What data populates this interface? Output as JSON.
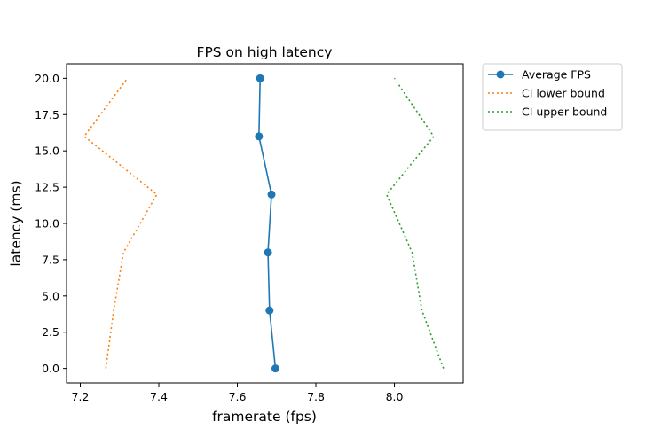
{
  "chart_data": {
    "type": "line",
    "title": "FPS on high latency",
    "xlabel": "framerate (fps)",
    "ylabel": "latency (ms)",
    "xlim": [
      7.165,
      8.175
    ],
    "ylim": [
      -1.0,
      21.0
    ],
    "xticks": [
      7.2,
      7.4,
      7.6,
      7.8,
      8.0
    ],
    "xtick_labels": [
      "7.2",
      "7.4",
      "7.6",
      "7.8",
      "8.0"
    ],
    "yticks": [
      0.0,
      2.5,
      5.0,
      7.5,
      10.0,
      12.5,
      15.0,
      17.5,
      20.0
    ],
    "ytick_labels": [
      "0.0",
      "2.5",
      "5.0",
      "7.5",
      "10.0",
      "12.5",
      "15.0",
      "17.5",
      "20.0"
    ],
    "grid": false,
    "legend_placement": "outside-upper-right",
    "series": [
      {
        "name": "Average FPS",
        "style": "solid",
        "marker": "circle",
        "color": "#1f77b4",
        "points": [
          {
            "x": 7.697,
            "y": 0
          },
          {
            "x": 7.682,
            "y": 4
          },
          {
            "x": 7.678,
            "y": 8
          },
          {
            "x": 7.687,
            "y": 12
          },
          {
            "x": 7.655,
            "y": 16
          },
          {
            "x": 7.658,
            "y": 20
          }
        ]
      },
      {
        "name": "CI lower bound",
        "style": "dotted",
        "marker": "none",
        "color": "#ff7f0e",
        "points": [
          {
            "x": 7.265,
            "y": 0
          },
          {
            "x": 7.285,
            "y": 4
          },
          {
            "x": 7.31,
            "y": 8
          },
          {
            "x": 7.395,
            "y": 12
          },
          {
            "x": 7.21,
            "y": 16
          },
          {
            "x": 7.32,
            "y": 20
          }
        ]
      },
      {
        "name": "CI upper bound",
        "style": "dotted",
        "marker": "none",
        "color": "#2ca02c",
        "points": [
          {
            "x": 8.125,
            "y": 0
          },
          {
            "x": 8.07,
            "y": 4
          },
          {
            "x": 8.045,
            "y": 8
          },
          {
            "x": 7.98,
            "y": 12
          },
          {
            "x": 8.1,
            "y": 16
          },
          {
            "x": 8.0,
            "y": 20
          }
        ]
      }
    ]
  }
}
